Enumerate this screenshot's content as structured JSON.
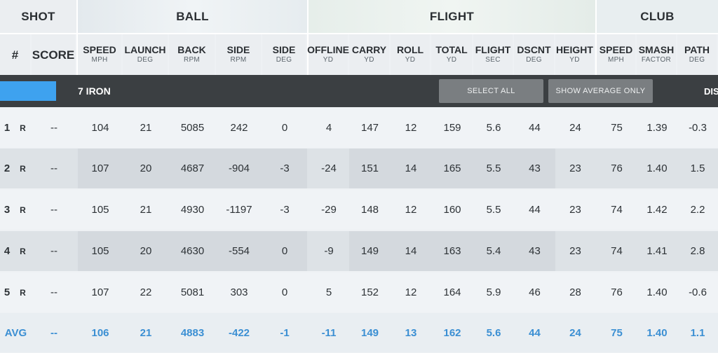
{
  "groups": {
    "shot": "SHOT",
    "ball": "BALL",
    "flight": "FLIGHT",
    "club": "CLUB"
  },
  "columns": [
    {
      "main": "#",
      "unit": ""
    },
    {
      "main": "SCORE",
      "unit": ""
    },
    {
      "main": "SPEED",
      "unit": "MPH"
    },
    {
      "main": "LAUNCH",
      "unit": "DEG"
    },
    {
      "main": "BACK",
      "unit": "RPM"
    },
    {
      "main": "SIDE",
      "unit": "RPM"
    },
    {
      "main": "SIDE",
      "unit": "DEG"
    },
    {
      "main": "OFFLINE",
      "unit": "YD"
    },
    {
      "main": "CARRY",
      "unit": "YD"
    },
    {
      "main": "ROLL",
      "unit": "YD"
    },
    {
      "main": "TOTAL",
      "unit": "YD"
    },
    {
      "main": "FLIGHT",
      "unit": "SEC"
    },
    {
      "main": "DSCNT",
      "unit": "DEG"
    },
    {
      "main": "HEIGHT",
      "unit": "YD"
    },
    {
      "main": "SPEED",
      "unit": "MPH"
    },
    {
      "main": "SMASH",
      "unit": "FACTOR"
    },
    {
      "main": "PATH",
      "unit": "DEG"
    }
  ],
  "club_band": {
    "swatch_color": "#3ea2ef",
    "club_name": "7 IRON",
    "select_all": "SELECT ALL",
    "show_average": "SHOW AVERAGE ONLY",
    "truncated": "DIS"
  },
  "shots": [
    {
      "num": "1",
      "hand": "R",
      "score": "--",
      "values": [
        "104",
        "21",
        "5085",
        "242",
        "0",
        "4",
        "147",
        "12",
        "159",
        "5.6",
        "44",
        "24",
        "75",
        "1.39",
        "-0.3"
      ]
    },
    {
      "num": "2",
      "hand": "R",
      "score": "--",
      "values": [
        "107",
        "20",
        "4687",
        "-904",
        "-3",
        "-24",
        "151",
        "14",
        "165",
        "5.5",
        "43",
        "23",
        "76",
        "1.40",
        "1.5"
      ]
    },
    {
      "num": "3",
      "hand": "R",
      "score": "--",
      "values": [
        "105",
        "21",
        "4930",
        "-1197",
        "-3",
        "-29",
        "148",
        "12",
        "160",
        "5.5",
        "44",
        "23",
        "74",
        "1.42",
        "2.2"
      ]
    },
    {
      "num": "4",
      "hand": "R",
      "score": "--",
      "values": [
        "105",
        "20",
        "4630",
        "-554",
        "0",
        "-9",
        "149",
        "14",
        "163",
        "5.4",
        "43",
        "23",
        "74",
        "1.41",
        "2.8"
      ]
    },
    {
      "num": "5",
      "hand": "R",
      "score": "--",
      "values": [
        "107",
        "22",
        "5081",
        "303",
        "0",
        "5",
        "152",
        "12",
        "164",
        "5.9",
        "46",
        "28",
        "76",
        "1.40",
        "-0.6"
      ]
    }
  ],
  "average": {
    "label": "AVG",
    "score": "--",
    "values": [
      "106",
      "21",
      "4883",
      "-422",
      "-1",
      "-11",
      "149",
      "13",
      "162",
      "5.6",
      "44",
      "24",
      "75",
      "1.40",
      "1.1"
    ]
  },
  "colors": {
    "accent_blue": "#3b8fd3",
    "band_dark": "#3b3f42",
    "button_gray": "#7a7e81"
  }
}
